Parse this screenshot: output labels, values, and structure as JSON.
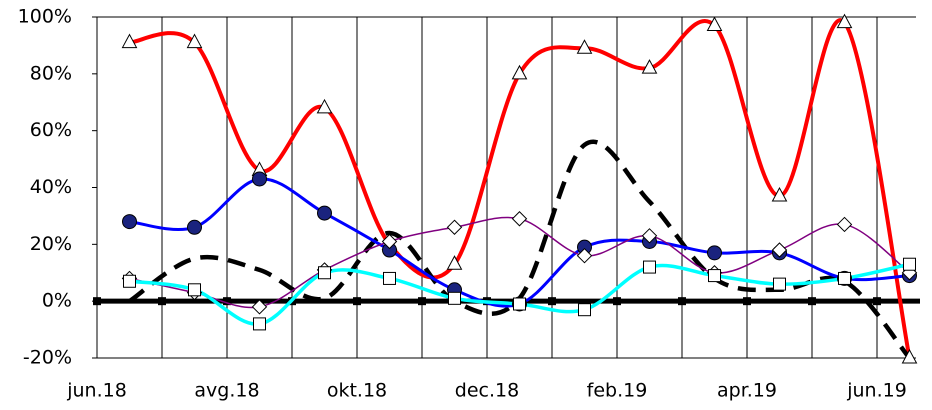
{
  "chart_data": {
    "type": "line",
    "xlim": [
      0,
      12.6
    ],
    "xticks": [
      {
        "value": 0,
        "label": "jun.18"
      },
      {
        "value": 1,
        "label": null
      },
      {
        "value": 2,
        "label": "avg.18"
      },
      {
        "value": 3,
        "label": null
      },
      {
        "value": 4,
        "label": "okt.18"
      },
      {
        "value": 5,
        "label": null
      },
      {
        "value": 6,
        "label": "dec.18"
      },
      {
        "value": 7,
        "label": null
      },
      {
        "value": 8,
        "label": "feb.19"
      },
      {
        "value": 9,
        "label": null
      },
      {
        "value": 10,
        "label": "apr.19"
      },
      {
        "value": 11,
        "label": null
      },
      {
        "value": 12,
        "label": "jun.19"
      }
    ],
    "ylim": [
      -20,
      100
    ],
    "yticks": [
      {
        "value": -20,
        "label": "-20%"
      },
      {
        "value": 0,
        "label": "0%"
      },
      {
        "value": 20,
        "label": "20%"
      },
      {
        "value": 40,
        "label": "40%"
      },
      {
        "value": 60,
        "label": "60%"
      },
      {
        "value": 80,
        "label": "80%"
      },
      {
        "value": 100,
        "label": "100%"
      }
    ],
    "grid": true,
    "x": [
      0.5,
      1.5,
      2.5,
      3.5,
      4.5,
      5.5,
      6.5,
      7.5,
      8.5,
      9.5,
      10.5,
      11.5,
      12.5
    ],
    "series": [
      {
        "color": "#ff0000",
        "marker": "triangle",
        "values": [
          91,
          91,
          46,
          68,
          20,
          13,
          80,
          89,
          82,
          97,
          37,
          98,
          -20
        ]
      },
      {
        "color": "#000000",
        "dashed": true,
        "values": [
          0,
          15,
          11,
          1,
          24,
          0,
          1,
          55,
          35,
          8,
          4,
          7,
          -20
        ]
      },
      {
        "color": "#0000ff",
        "marker": "circle",
        "values": [
          28,
          26,
          43,
          31,
          18,
          4,
          -1,
          19,
          21,
          17,
          17,
          8,
          9
        ]
      },
      {
        "color": "#800080",
        "marker": "diamond",
        "values": [
          8,
          3,
          -2,
          11,
          21,
          26,
          29,
          16,
          23,
          10,
          18,
          27,
          10
        ]
      },
      {
        "color": "#00ffff",
        "marker": "square",
        "values": [
          7,
          4,
          -8,
          10,
          8,
          1,
          -1,
          -3,
          12,
          9,
          6,
          8,
          13
        ]
      }
    ]
  }
}
